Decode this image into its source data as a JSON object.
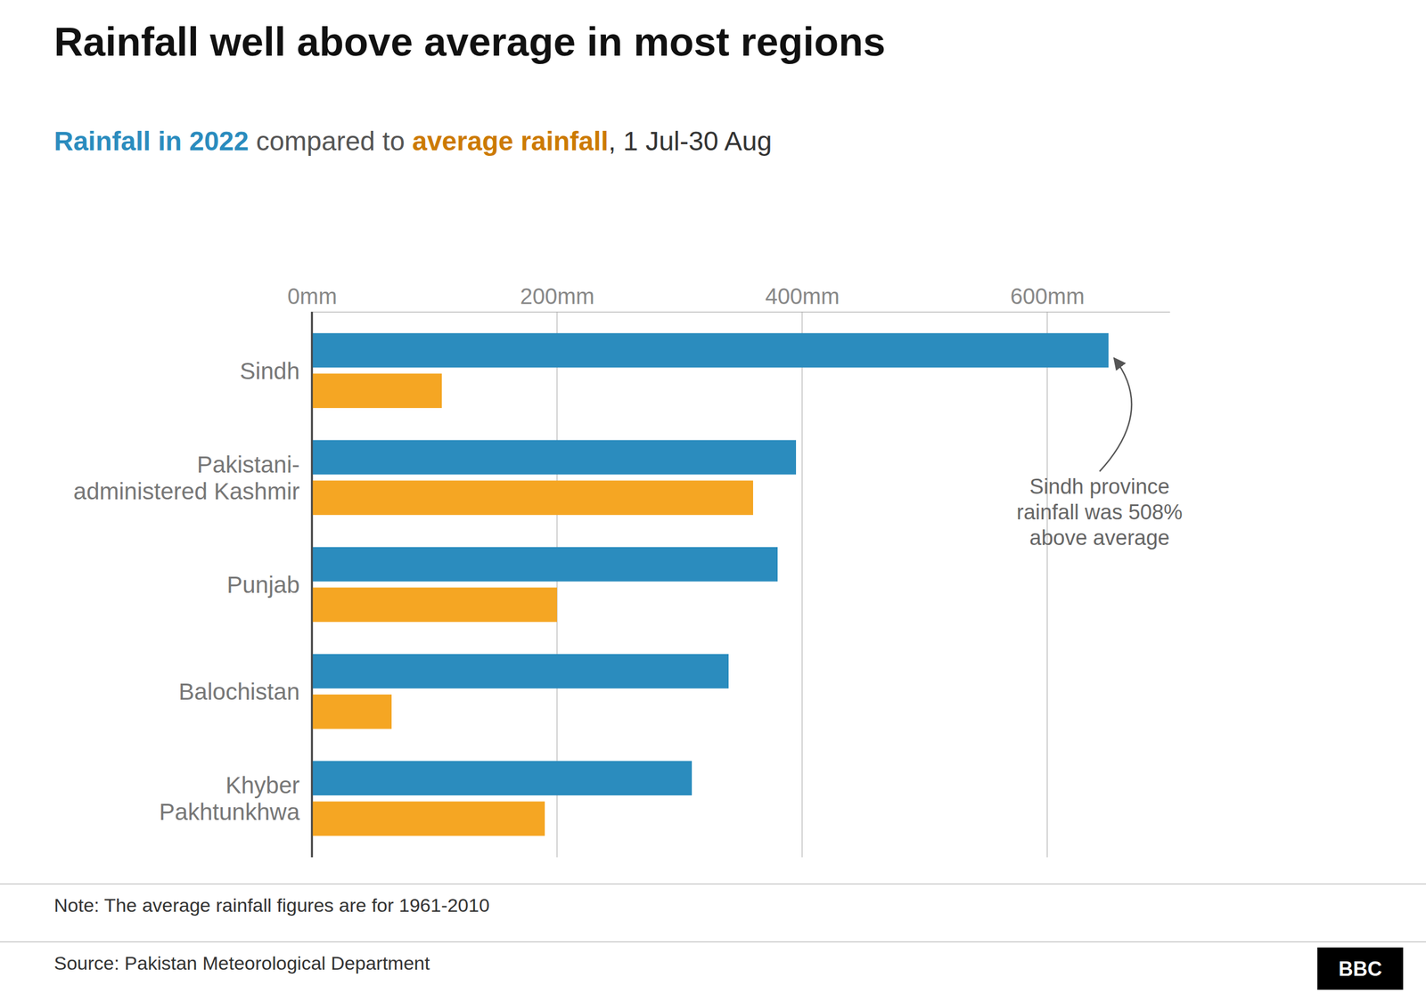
{
  "chart_data": {
    "type": "bar",
    "orientation": "horizontal",
    "title": "Rainfall well above average in most regions",
    "subtitle": [
      {
        "text": "Rainfall in 2022",
        "color": "#2b8cbe"
      },
      {
        "text": " compared to ",
        "color": "#555555"
      },
      {
        "text": "average rainfall",
        "color": "#cc7a00"
      },
      {
        "text": ", 1 Jul-30 Aug",
        "color": "#333333"
      }
    ],
    "categories": [
      "Sindh",
      "Pakistani-\nadministered Kashmir",
      "Punjab",
      "Balochistan",
      "Khyber\nPakhtunkhwa"
    ],
    "series": [
      {
        "name": "Rainfall in 2022",
        "color": "#2b8cbe",
        "values": [
          650,
          395,
          380,
          340,
          310
        ]
      },
      {
        "name": "average rainfall",
        "color": "#f5a623",
        "values": [
          106,
          360,
          200,
          65,
          190
        ]
      }
    ],
    "xlim": [
      0,
      700
    ],
    "xticks": [
      {
        "value": 0,
        "label": "0mm"
      },
      {
        "value": 200,
        "label": "200mm"
      },
      {
        "value": 400,
        "label": "400mm"
      },
      {
        "value": 600,
        "label": "600mm"
      }
    ],
    "grid": true,
    "annotations": [
      {
        "text": "Sindh province\nrainfall was 508%\nabove average",
        "color": "#666666",
        "category": "Sindh"
      }
    ],
    "note": "Note: The average rainfall figures are for 1961-2010",
    "source": "Source: Pakistan Meteorological Department",
    "credit": "BBC"
  }
}
